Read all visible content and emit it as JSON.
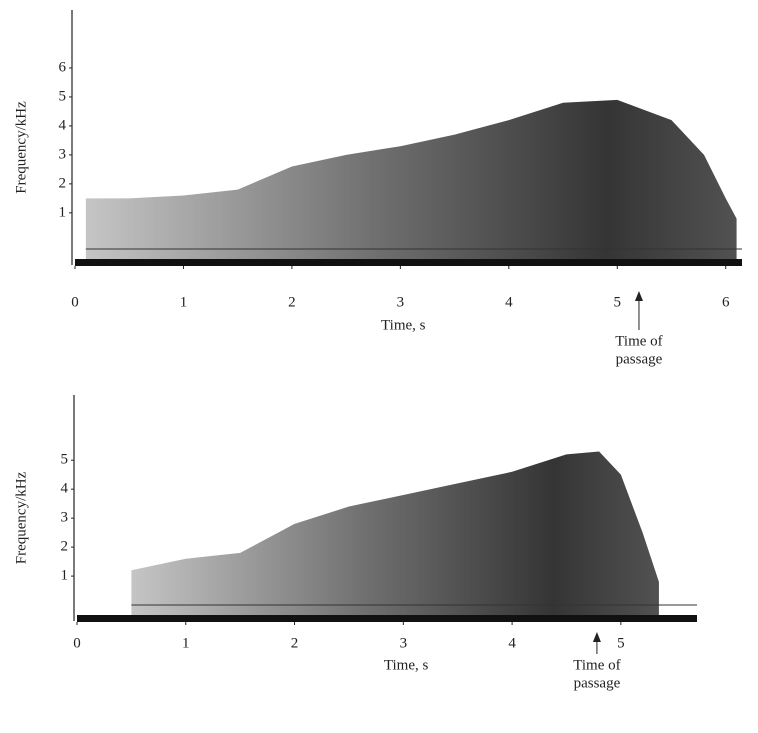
{
  "chart_data": [
    {
      "type": "spectrogram",
      "xlabel": "Time, s",
      "ylabel": "Frequency/kHz",
      "xlim": [
        0,
        6.15
      ],
      "ylim": [
        -0.8,
        8
      ],
      "xticks": [
        0,
        1,
        2,
        3,
        4,
        5,
        6
      ],
      "yticks": [
        1,
        2,
        3,
        4,
        5,
        6
      ],
      "x": [
        0.1,
        0.5,
        1,
        1.5,
        2,
        2.5,
        3,
        3.5,
        4,
        4.5,
        5,
        5.5,
        5.8,
        6,
        6.1
      ],
      "values": [
        1.5,
        1.5,
        1.6,
        1.8,
        2.6,
        3.0,
        3.3,
        3.7,
        4.2,
        4.8,
        4.9,
        4.2,
        3.0,
        1.5,
        0.8
      ],
      "annotation": [
        "Time of",
        "passage"
      ],
      "annotation_x": 5.2
    },
    {
      "type": "spectrogram",
      "xlabel": "Time, s",
      "ylabel": "Frequency/kHz",
      "xlim": [
        0,
        5.7
      ],
      "ylim": [
        -0.55,
        7.25
      ],
      "xticks": [
        0,
        1,
        2,
        3,
        4,
        5
      ],
      "yticks": [
        1,
        2,
        3,
        4,
        5
      ],
      "x": [
        0.5,
        1,
        1.5,
        2,
        2.5,
        3,
        3.5,
        4,
        4.5,
        4.8,
        5,
        5.2,
        5.35
      ],
      "values": [
        1.2,
        1.6,
        1.8,
        2.8,
        3.4,
        3.8,
        4.2,
        4.6,
        5.2,
        5.3,
        4.5,
        2.5,
        0.8
      ],
      "annotation": [
        "Time of",
        "passage"
      ],
      "annotation_x": 4.78
    }
  ]
}
